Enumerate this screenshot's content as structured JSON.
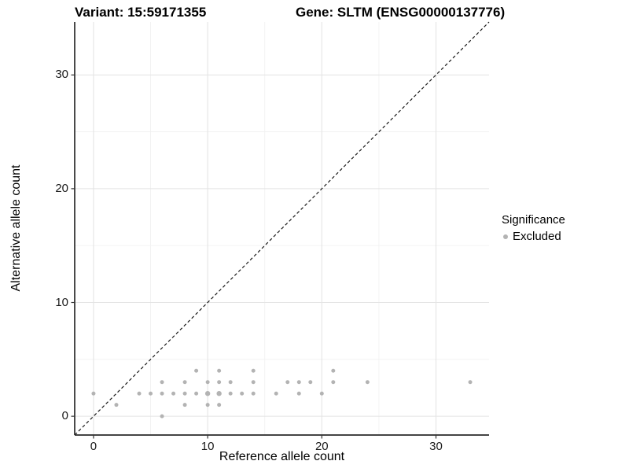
{
  "plot": {
    "title_left": "Variant: 15:59171355",
    "title_right": "Gene: SLTM (ENSG00000137776)"
  },
  "legend": {
    "title": "Significance",
    "items": [
      {
        "label": "Excluded",
        "color": "#b3b3b3",
        "marker": "circle"
      }
    ]
  },
  "chart_data": {
    "type": "scatter",
    "title": "Variant: 15:59171355 | Gene: SLTM (ENSG00000137776)",
    "xlabel": "Reference allele count",
    "ylabel": "Alternative allele count",
    "xlim": [
      -1.65,
      34.65
    ],
    "ylim": [
      -1.65,
      34.65
    ],
    "x_ticks": [
      0,
      10,
      20,
      30
    ],
    "y_ticks": [
      0,
      10,
      20,
      30
    ],
    "x_minor_ticks": [
      5,
      15,
      25
    ],
    "y_minor_ticks": [
      5,
      15,
      25
    ],
    "grid": true,
    "legend_position": "right",
    "series": [
      {
        "name": "Excluded",
        "color": "#b3b3b3",
        "points": [
          [
            0,
            2
          ],
          [
            2,
            1
          ],
          [
            4,
            2
          ],
          [
            5,
            2
          ],
          [
            6,
            0
          ],
          [
            6,
            2
          ],
          [
            6,
            3
          ],
          [
            7,
            2
          ],
          [
            8,
            1
          ],
          [
            8,
            2
          ],
          [
            8,
            3
          ],
          [
            9,
            2
          ],
          [
            9,
            4
          ],
          [
            10,
            1
          ],
          [
            10,
            2,
            3.2
          ],
          [
            10,
            3
          ],
          [
            11,
            1
          ],
          [
            11,
            2,
            3.2
          ],
          [
            11,
            3
          ],
          [
            11,
            4
          ],
          [
            12,
            2
          ],
          [
            12,
            3
          ],
          [
            13,
            2
          ],
          [
            14,
            2
          ],
          [
            14,
            3
          ],
          [
            14,
            4
          ],
          [
            16,
            2
          ],
          [
            17,
            3
          ],
          [
            18,
            2
          ],
          [
            18,
            3
          ],
          [
            19,
            3
          ],
          [
            20,
            2
          ],
          [
            21,
            3
          ],
          [
            21,
            4
          ],
          [
            24,
            3
          ],
          [
            33,
            3
          ]
        ]
      }
    ],
    "reference_line": {
      "type": "identity",
      "slope": 1,
      "intercept": 0,
      "style": "dashed",
      "color": "#1a1a1a"
    }
  },
  "style": {
    "point_color": "#b3b3b3",
    "point_radius": 2.5,
    "grid_major_color": "#e4e4e4",
    "grid_minor_color": "#f1f1f1",
    "axis_line_color": "#2a2a2a",
    "tick_color": "#333333",
    "background": "#ffffff"
  }
}
